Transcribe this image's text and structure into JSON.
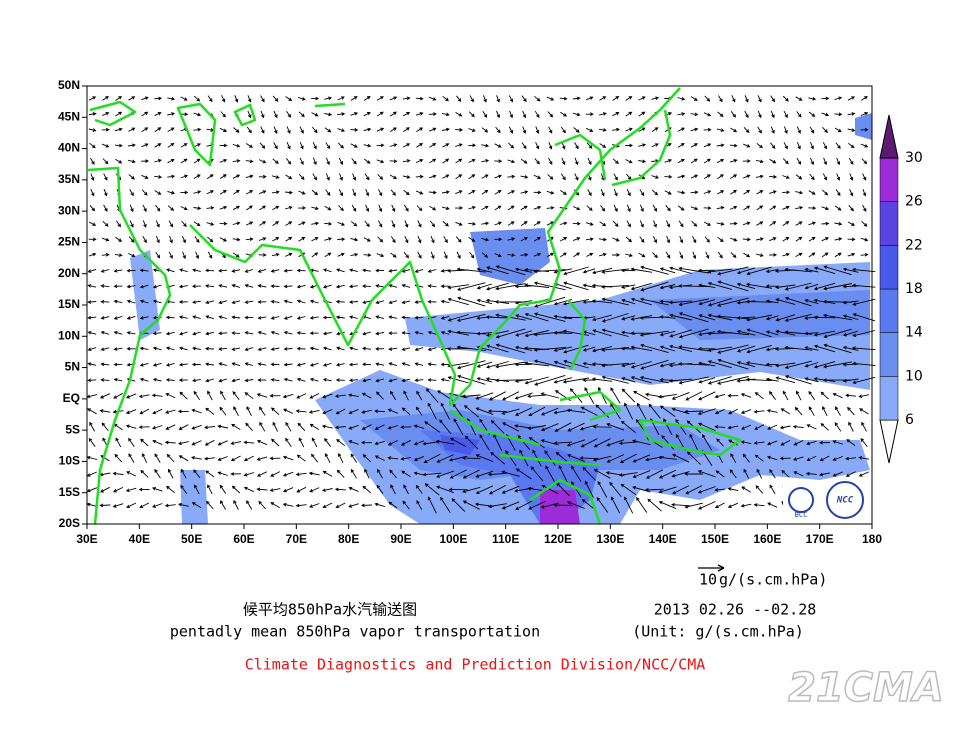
{
  "map": {
    "x_ticks": [
      "30E",
      "40E",
      "50E",
      "60E",
      "70E",
      "80E",
      "90E",
      "100E",
      "110E",
      "120E",
      "130E",
      "140E",
      "150E",
      "160E",
      "170E",
      "180"
    ],
    "y_ticks": [
      "50N",
      "45N",
      "40N",
      "35N",
      "30N",
      "25N",
      "20N",
      "15N",
      "10N",
      "5N",
      "EQ",
      "5S",
      "10S",
      "15S",
      "20S"
    ]
  },
  "colorbar": {
    "levels": [
      6,
      10,
      14,
      18,
      22,
      26,
      30
    ],
    "colors": [
      "#ffffff",
      "#88aaf8",
      "#6a8ef0",
      "#5a78f0",
      "#4a5ae8",
      "#5a44e0",
      "#9c2bd8",
      "#5c1a70"
    ]
  },
  "reference_vector": {
    "value": "10",
    "unit": "g/(s.cm.hPa)"
  },
  "captions": {
    "title_cn": "候平均850hPa水汽输送图",
    "title_en": "pentadly mean 850hPa vapor transportation",
    "date": "2013  02.26 --02.28",
    "unit_note": "(Unit: g/(s.cm.hPa)",
    "credit": "Climate Diagnostics and Prediction Division/NCC/CMA"
  },
  "logos": {
    "bcc": "BCC",
    "ncc": "NCC"
  },
  "watermark": "21CMA"
}
